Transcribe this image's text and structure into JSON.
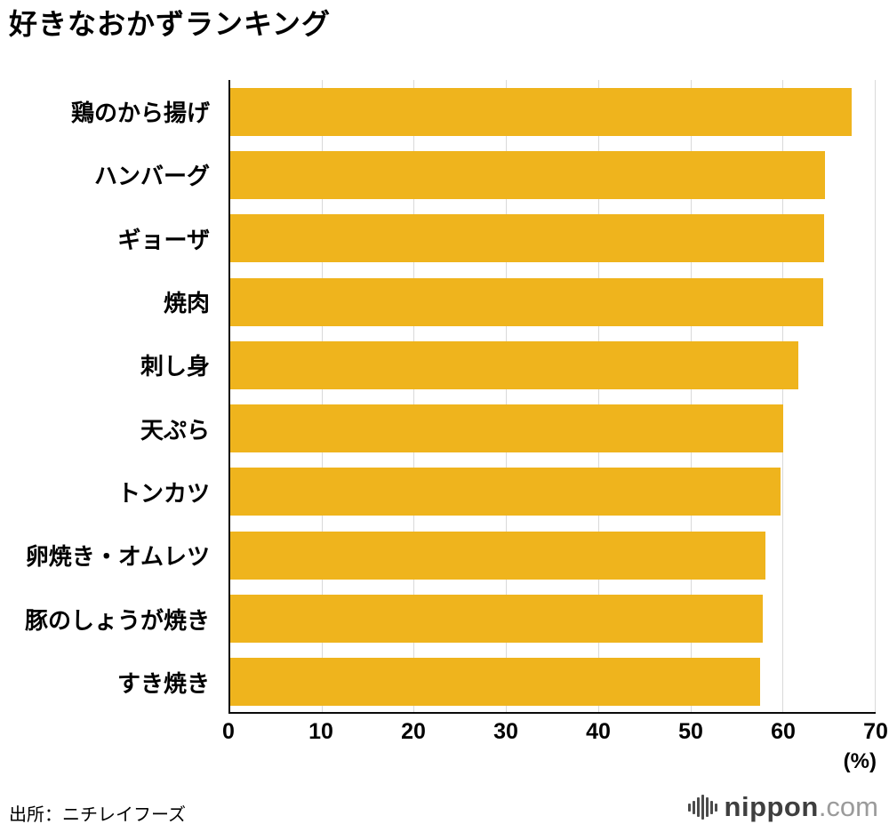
{
  "page": {
    "title": "好きなおかずランキング"
  },
  "axis": {
    "unit_label": "(%)"
  },
  "footer": {
    "source": "出所：ニチレイフーズ",
    "logo_name": "nippon",
    "logo_tld": ".com"
  },
  "colors": {
    "bar": "#EFB41D",
    "gridline": "#d9d9d9",
    "axis": "#0a0a0a"
  },
  "chart_data": {
    "type": "bar",
    "orientation": "horizontal",
    "title": "好きなおかずランキング",
    "xlabel": "(%)",
    "ylabel": "",
    "categories": [
      "鶏のから揚げ",
      "ハンバーグ",
      "ギョーザ",
      "焼肉",
      "刺し身",
      "天ぷら",
      "トンカツ",
      "卵焼き・オムレツ",
      "豚のしょうが焼き",
      "すき焼き"
    ],
    "values": [
      67.4,
      64.5,
      64.4,
      64.3,
      61.6,
      60.0,
      59.7,
      58.0,
      57.8,
      57.5
    ],
    "xlim": [
      0,
      70
    ],
    "xticks": [
      0,
      10,
      20,
      30,
      40,
      50,
      60,
      70
    ],
    "grid": true,
    "legend": false,
    "bar_color": "#EFB41D",
    "source": "出所：ニチレイフーズ"
  }
}
